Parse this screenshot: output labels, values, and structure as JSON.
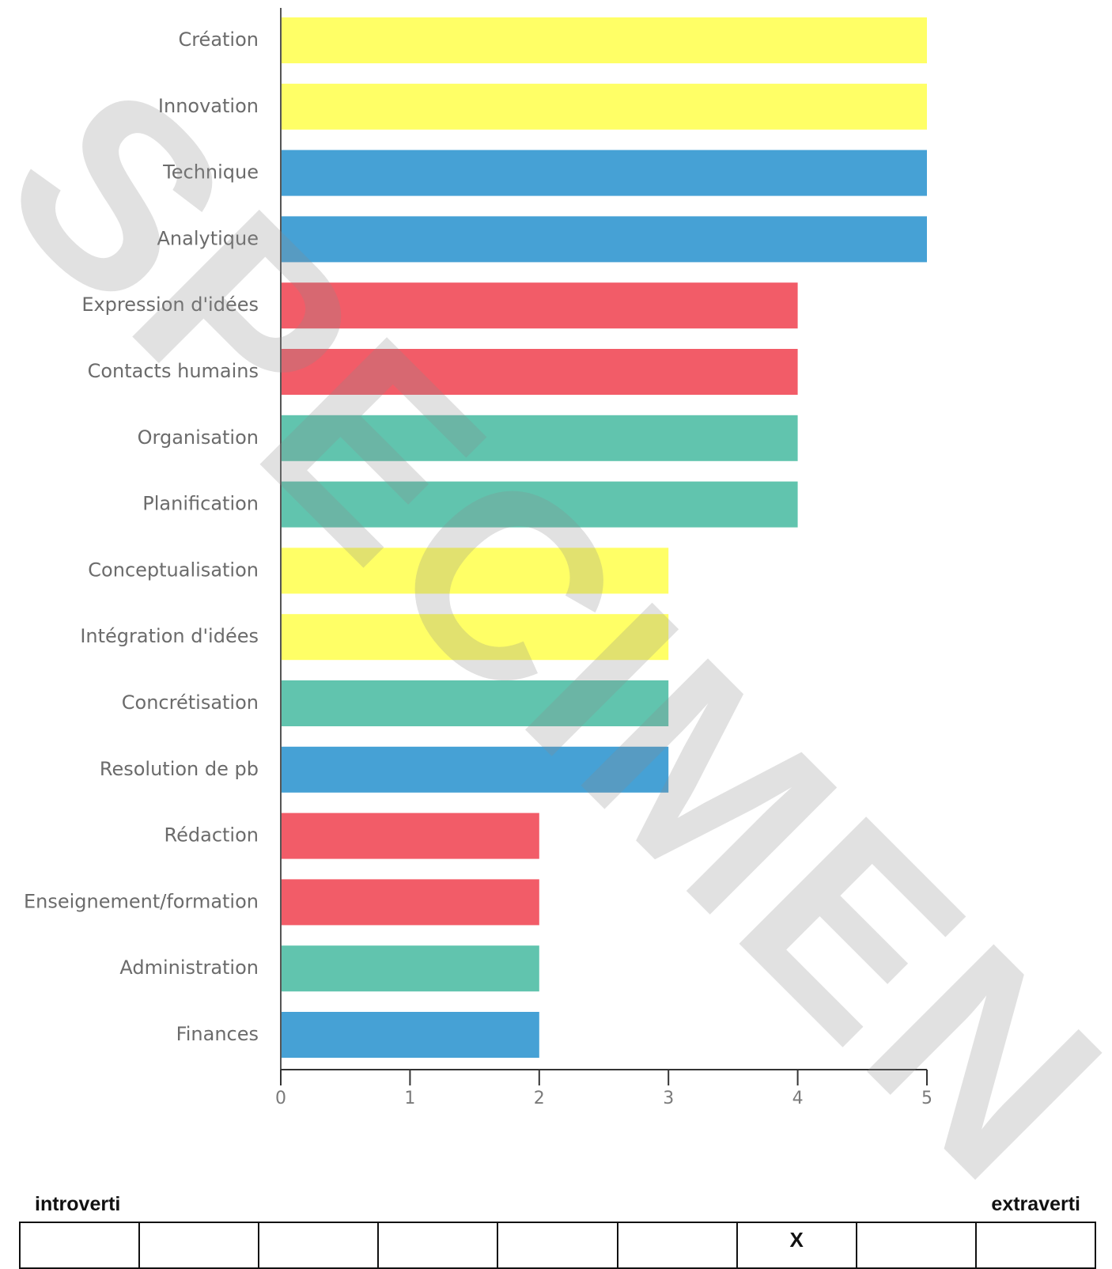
{
  "chart_data": {
    "type": "bar",
    "orientation": "horizontal",
    "categories": [
      "Création",
      "Innovation",
      "Technique",
      "Analytique",
      "Expression d'idées",
      "Contacts humains",
      "Organisation",
      "Planification",
      "Conceptualisation",
      "Intégration d'idées",
      "Concrétisation",
      "Resolution de pb",
      "Rédaction",
      "Enseignement/formation",
      "Administration",
      "Finances"
    ],
    "values": [
      5,
      5,
      5,
      5,
      4,
      4,
      4,
      4,
      3,
      3,
      3,
      3,
      2,
      2,
      2,
      2
    ],
    "colors": [
      "#ffff66",
      "#ffff66",
      "#46a1d5",
      "#46a1d5",
      "#f25c68",
      "#f25c68",
      "#61c4ae",
      "#61c4ae",
      "#ffff66",
      "#ffff66",
      "#61c4ae",
      "#46a1d5",
      "#f25c68",
      "#f25c68",
      "#61c4ae",
      "#46a1d5"
    ],
    "xlim": [
      0,
      5
    ],
    "xticks": [
      "0",
      "1",
      "2",
      "3",
      "4",
      "5"
    ],
    "title": "",
    "xlabel": "",
    "ylabel": "",
    "grid": false,
    "legend": "none"
  },
  "scale": {
    "left_label": "introverti",
    "right_label": "extraverti",
    "cells": [
      "",
      "",
      "",
      "",
      "",
      "",
      "X",
      "",
      ""
    ]
  },
  "watermark": "SPECIMEN"
}
